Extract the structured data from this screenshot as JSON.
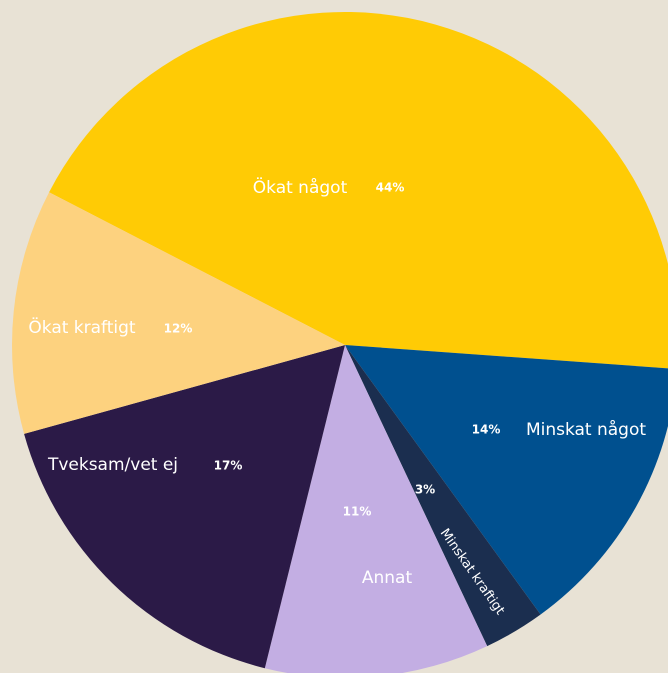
{
  "chart_data": {
    "type": "pie",
    "categories": [
      "Ökat något",
      "Minskat något",
      "Minskat kraftigt",
      "Annat",
      "Tveksam/vet ej",
      "Ökat kraftigt"
    ],
    "values": [
      44,
      14,
      3,
      11,
      17,
      12
    ],
    "value_labels": [
      "44%",
      "14%",
      "3%",
      "11%",
      "17%",
      "12%"
    ],
    "colors": [
      "#ffcb05",
      "#00508f",
      "#1b2e4f",
      "#c3aee3",
      "#2b1a47",
      "#fdd27f"
    ]
  }
}
